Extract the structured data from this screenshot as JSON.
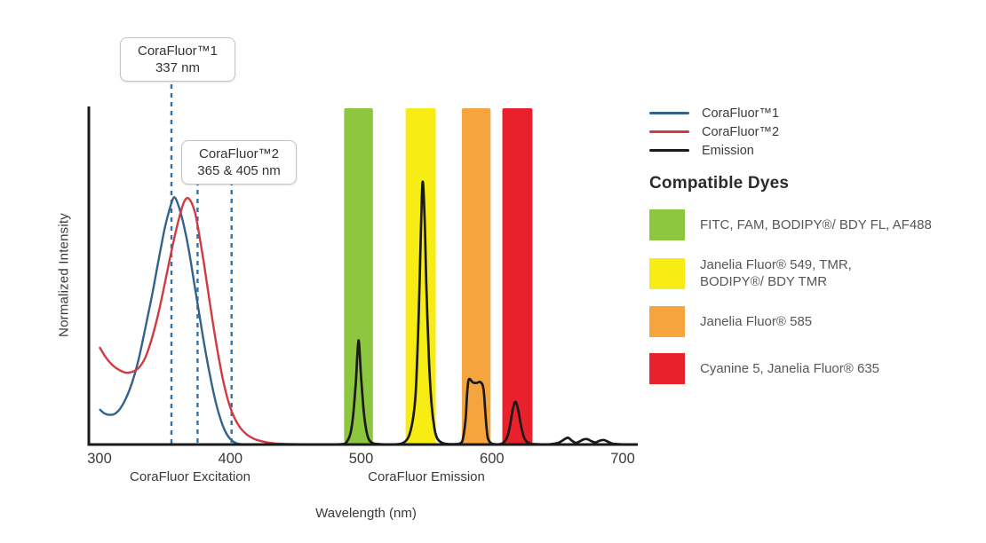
{
  "chart_data": {
    "type": "line",
    "title": "",
    "xlabel": "Wavelength (nm)",
    "ylabel": "Normalized Intensity",
    "x_ticks": [
      300,
      400,
      500,
      600,
      700
    ],
    "x_range": [
      300,
      712
    ],
    "ylim": [
      0,
      1
    ],
    "grid": false,
    "legend_position": "right-outside",
    "axis_section_labels": [
      {
        "text": "CoraFluor Excitation"
      },
      {
        "text": "CoraFluor Emission"
      }
    ],
    "annotations": [
      {
        "title": "CoraFluor™1",
        "subtitle": "337 nm",
        "lines_nm": [
          355
        ]
      },
      {
        "title": "CoraFluor™2",
        "subtitle": "365 & 405 nm",
        "lines_nm": [
          375,
          401
        ]
      }
    ],
    "dashed_line_color": "#2f74a8",
    "bands": [
      {
        "name": "green",
        "nm": [
          487,
          509
        ],
        "color": "#8dc63f"
      },
      {
        "name": "yellow",
        "nm": [
          534,
          557
        ],
        "color": "#f7ec13"
      },
      {
        "name": "orange",
        "nm": [
          577,
          599
        ],
        "color": "#f6a43e"
      },
      {
        "name": "red",
        "nm": [
          608,
          631
        ],
        "color": "#e8212d"
      }
    ],
    "series": [
      {
        "name": "CoraFluor™1",
        "color": "#33638d",
        "points": [
          [
            300,
            0.105
          ],
          [
            304,
            0.092
          ],
          [
            308,
            0.088
          ],
          [
            312,
            0.092
          ],
          [
            316,
            0.108
          ],
          [
            320,
            0.135
          ],
          [
            325,
            0.185
          ],
          [
            330,
            0.255
          ],
          [
            335,
            0.345
          ],
          [
            340,
            0.44
          ],
          [
            345,
            0.545
          ],
          [
            350,
            0.645
          ],
          [
            354,
            0.705
          ],
          [
            357,
            0.735
          ],
          [
            360,
            0.715
          ],
          [
            364,
            0.66
          ],
          [
            368,
            0.585
          ],
          [
            372,
            0.49
          ],
          [
            376,
            0.395
          ],
          [
            380,
            0.3
          ],
          [
            384,
            0.215
          ],
          [
            388,
            0.14
          ],
          [
            392,
            0.082
          ],
          [
            396,
            0.04
          ],
          [
            400,
            0.016
          ],
          [
            404,
            0.005
          ],
          [
            408,
            0.001
          ],
          [
            414,
            0
          ]
        ]
      },
      {
        "name": "CoraFluor™2",
        "color": "#d03a40",
        "points": [
          [
            300,
            0.29
          ],
          [
            305,
            0.258
          ],
          [
            310,
            0.236
          ],
          [
            315,
            0.222
          ],
          [
            320,
            0.214
          ],
          [
            325,
            0.216
          ],
          [
            330,
            0.228
          ],
          [
            335,
            0.258
          ],
          [
            340,
            0.315
          ],
          [
            345,
            0.39
          ],
          [
            350,
            0.48
          ],
          [
            355,
            0.575
          ],
          [
            360,
            0.66
          ],
          [
            364,
            0.715
          ],
          [
            367,
            0.733
          ],
          [
            370,
            0.722
          ],
          [
            373,
            0.69
          ],
          [
            376,
            0.63
          ],
          [
            380,
            0.535
          ],
          [
            384,
            0.43
          ],
          [
            388,
            0.33
          ],
          [
            392,
            0.24
          ],
          [
            396,
            0.165
          ],
          [
            400,
            0.11
          ],
          [
            404,
            0.073
          ],
          [
            408,
            0.048
          ],
          [
            412,
            0.032
          ],
          [
            416,
            0.021
          ],
          [
            420,
            0.014
          ],
          [
            426,
            0.008
          ],
          [
            432,
            0.004
          ],
          [
            440,
            0.002
          ],
          [
            450,
            0.001
          ],
          [
            462,
            0
          ]
        ]
      },
      {
        "name": "Emission",
        "color": "#1a1a1a",
        "points": [
          [
            465,
            0
          ],
          [
            485,
            0.001
          ],
          [
            489,
            0.008
          ],
          [
            492,
            0.035
          ],
          [
            494,
            0.09
          ],
          [
            496,
            0.185
          ],
          [
            498,
            0.31
          ],
          [
            500,
            0.2
          ],
          [
            502,
            0.1
          ],
          [
            504,
            0.042
          ],
          [
            506,
            0.015
          ],
          [
            509,
            0.004
          ],
          [
            514,
            0.001
          ],
          [
            522,
            0
          ],
          [
            530,
            0.002
          ],
          [
            534,
            0.01
          ],
          [
            537,
            0.03
          ],
          [
            540,
            0.085
          ],
          [
            542,
            0.17
          ],
          [
            544,
            0.38
          ],
          [
            545.5,
            0.6
          ],
          [
            547,
            0.78
          ],
          [
            548.5,
            0.68
          ],
          [
            550,
            0.46
          ],
          [
            552,
            0.24
          ],
          [
            554,
            0.115
          ],
          [
            556,
            0.05
          ],
          [
            558,
            0.02
          ],
          [
            561,
            0.007
          ],
          [
            565,
            0.002
          ],
          [
            571,
            0.001
          ],
          [
            576,
            0.004
          ],
          [
            578,
            0.02
          ],
          [
            580,
            0.08
          ],
          [
            581,
            0.15
          ],
          [
            582,
            0.188
          ],
          [
            583,
            0.195
          ],
          [
            585,
            0.186
          ],
          [
            587,
            0.183
          ],
          [
            589,
            0.184
          ],
          [
            591,
            0.186
          ],
          [
            593,
            0.176
          ],
          [
            594,
            0.15
          ],
          [
            595,
            0.095
          ],
          [
            596,
            0.045
          ],
          [
            597,
            0.018
          ],
          [
            599,
            0.005
          ],
          [
            602,
            0.001
          ],
          [
            606,
            0.001
          ],
          [
            609,
            0.006
          ],
          [
            612,
            0.025
          ],
          [
            614,
            0.06
          ],
          [
            616,
            0.105
          ],
          [
            618,
            0.127
          ],
          [
            620,
            0.105
          ],
          [
            622,
            0.062
          ],
          [
            624,
            0.028
          ],
          [
            626,
            0.011
          ],
          [
            629,
            0.003
          ],
          [
            634,
            0.001
          ],
          [
            642,
            0
          ],
          [
            650,
            0.004
          ],
          [
            654,
            0.012
          ],
          [
            658,
            0.02
          ],
          [
            661,
            0.012
          ],
          [
            664,
            0.005
          ],
          [
            667,
            0.009
          ],
          [
            670,
            0.015
          ],
          [
            673,
            0.016
          ],
          [
            676,
            0.01
          ],
          [
            679,
            0.006
          ],
          [
            681,
            0.009
          ],
          [
            684,
            0.013
          ],
          [
            686,
            0.013
          ],
          [
            689,
            0.008
          ],
          [
            692,
            0.003
          ],
          [
            697,
            0.001
          ],
          [
            703,
            0
          ]
        ]
      }
    ]
  },
  "compatible_dyes": {
    "heading": "Compatible Dyes",
    "items": [
      {
        "color": "#8dc63f",
        "lines": [
          "FITC, FAM, BODIPY®/ BDY FL, AF488"
        ]
      },
      {
        "color": "#f7ec13",
        "lines": [
          "Janelia Fluor® 549, TMR,",
          "BODIPY®/ BDY TMR"
        ]
      },
      {
        "color": "#f6a43e",
        "lines": [
          "Janelia Fluor® 585"
        ]
      },
      {
        "color": "#e8212d",
        "lines": [
          "Cyanine 5, Janelia Fluor® 635"
        ]
      }
    ]
  }
}
